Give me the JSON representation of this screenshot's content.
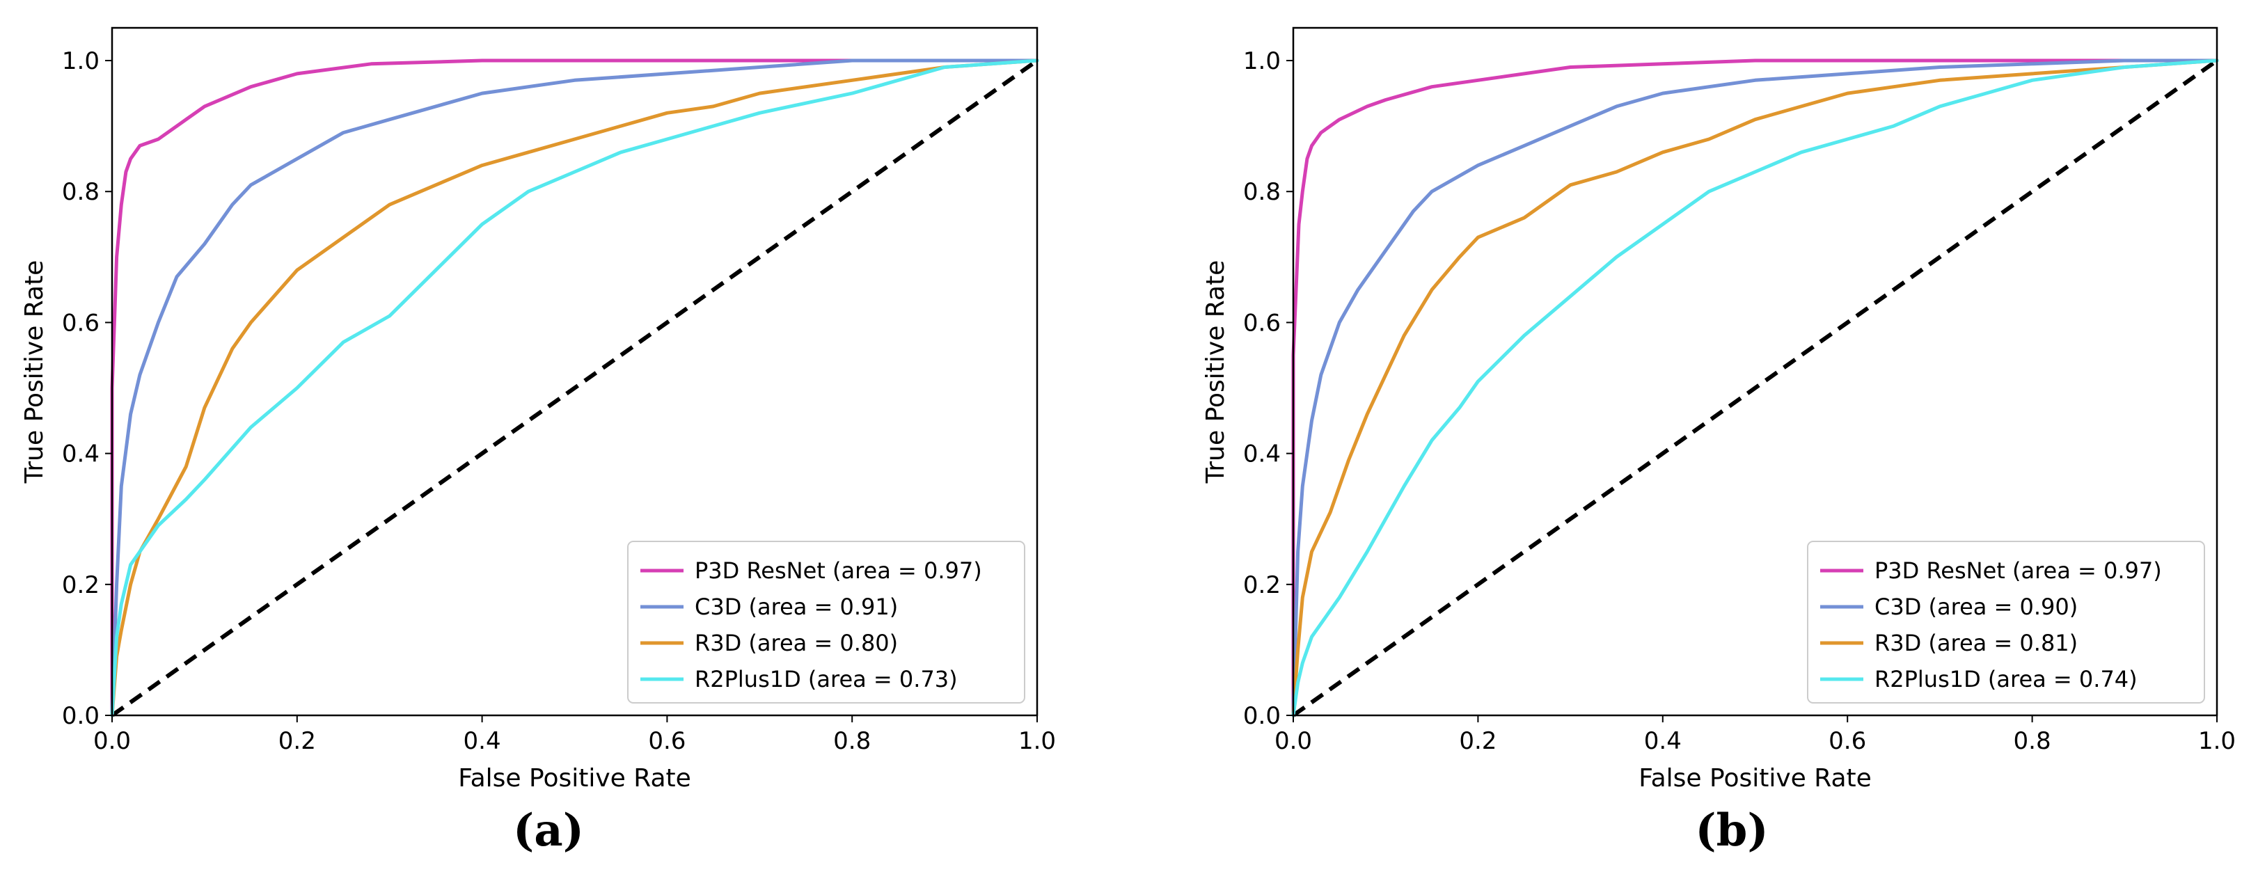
{
  "chart_data": [
    {
      "type": "line",
      "caption": "(a)",
      "xlabel": "False Positive Rate",
      "ylabel": "True Positive Rate",
      "xlim": [
        0.0,
        1.0
      ],
      "ylim": [
        0.0,
        1.05
      ],
      "xticks": [
        "0.0",
        "0.2",
        "0.4",
        "0.6",
        "0.8",
        "1.0"
      ],
      "yticks": [
        "0.0",
        "0.2",
        "0.4",
        "0.6",
        "0.8",
        "1.0"
      ],
      "grid": false,
      "legend_position": "lower-right",
      "diagonal": {
        "x": [
          0,
          1
        ],
        "y": [
          0,
          1
        ],
        "color": "#000000",
        "style": "dashed"
      },
      "series": [
        {
          "name": "P3D ResNet (area = 0.97)",
          "color": "#d63fb4",
          "x": [
            0,
            0,
            0.003,
            0.005,
            0.01,
            0.015,
            0.02,
            0.03,
            0.05,
            0.08,
            0.1,
            0.15,
            0.2,
            0.28,
            0.4,
            0.6,
            0.8,
            1.0
          ],
          "y": [
            0,
            0.5,
            0.62,
            0.7,
            0.78,
            0.83,
            0.85,
            0.87,
            0.88,
            0.91,
            0.93,
            0.96,
            0.98,
            0.995,
            1.0,
            1.0,
            1.0,
            1.0
          ]
        },
        {
          "name": "C3D (area = 0.91)",
          "color": "#7390d6",
          "x": [
            0,
            0.005,
            0.01,
            0.02,
            0.03,
            0.05,
            0.07,
            0.1,
            0.13,
            0.15,
            0.2,
            0.25,
            0.3,
            0.4,
            0.5,
            0.6,
            0.7,
            0.8,
            0.9,
            1.0
          ],
          "y": [
            0,
            0.2,
            0.35,
            0.46,
            0.52,
            0.6,
            0.67,
            0.72,
            0.78,
            0.81,
            0.85,
            0.89,
            0.91,
            0.95,
            0.97,
            0.98,
            0.99,
            1.0,
            1.0,
            1.0
          ]
        },
        {
          "name": "R3D (area = 0.80)",
          "color": "#e0962c",
          "x": [
            0,
            0.005,
            0.01,
            0.02,
            0.03,
            0.05,
            0.08,
            0.1,
            0.13,
            0.15,
            0.2,
            0.25,
            0.3,
            0.35,
            0.4,
            0.45,
            0.5,
            0.55,
            0.6,
            0.65,
            0.7,
            0.8,
            0.9,
            1.0
          ],
          "y": [
            0,
            0.09,
            0.13,
            0.2,
            0.25,
            0.3,
            0.38,
            0.47,
            0.56,
            0.6,
            0.68,
            0.73,
            0.78,
            0.81,
            0.84,
            0.86,
            0.88,
            0.9,
            0.92,
            0.93,
            0.95,
            0.97,
            0.99,
            1.0
          ]
        },
        {
          "name": "R2Plus1D (area = 0.73)",
          "color": "#55e8ee",
          "x": [
            0,
            0.005,
            0.01,
            0.02,
            0.05,
            0.08,
            0.1,
            0.15,
            0.2,
            0.25,
            0.3,
            0.35,
            0.4,
            0.45,
            0.5,
            0.55,
            0.6,
            0.65,
            0.7,
            0.8,
            0.9,
            1.0
          ],
          "y": [
            0,
            0.12,
            0.17,
            0.23,
            0.29,
            0.33,
            0.36,
            0.44,
            0.5,
            0.57,
            0.61,
            0.68,
            0.75,
            0.8,
            0.83,
            0.86,
            0.88,
            0.9,
            0.92,
            0.95,
            0.99,
            1.0
          ]
        }
      ]
    },
    {
      "type": "line",
      "caption": "(b)",
      "xlabel": "False Positive Rate",
      "ylabel": "True Positive Rate",
      "xlim": [
        0.0,
        1.0
      ],
      "ylim": [
        0.0,
        1.05
      ],
      "xticks": [
        "0.0",
        "0.2",
        "0.4",
        "0.6",
        "0.8",
        "1.0"
      ],
      "yticks": [
        "0.0",
        "0.2",
        "0.4",
        "0.6",
        "0.8",
        "1.0"
      ],
      "grid": false,
      "legend_position": "lower-right",
      "diagonal": {
        "x": [
          0,
          1
        ],
        "y": [
          0,
          1
        ],
        "color": "#000000",
        "style": "dashed"
      },
      "series": [
        {
          "name": "P3D ResNet (area = 0.97)",
          "color": "#d63fb4",
          "x": [
            0,
            0,
            0.003,
            0.006,
            0.01,
            0.015,
            0.02,
            0.03,
            0.05,
            0.08,
            0.1,
            0.15,
            0.2,
            0.3,
            0.4,
            0.5,
            0.7,
            1.0
          ],
          "y": [
            0,
            0.55,
            0.65,
            0.75,
            0.8,
            0.85,
            0.87,
            0.89,
            0.91,
            0.93,
            0.94,
            0.96,
            0.97,
            0.99,
            0.995,
            1.0,
            1.0,
            1.0
          ]
        },
        {
          "name": "C3D (area = 0.90)",
          "color": "#7390d6",
          "x": [
            0,
            0.005,
            0.01,
            0.02,
            0.03,
            0.05,
            0.07,
            0.1,
            0.13,
            0.15,
            0.2,
            0.25,
            0.3,
            0.35,
            0.4,
            0.5,
            0.6,
            0.7,
            0.8,
            0.9,
            1.0
          ],
          "y": [
            0,
            0.25,
            0.35,
            0.45,
            0.52,
            0.6,
            0.65,
            0.71,
            0.77,
            0.8,
            0.84,
            0.87,
            0.9,
            0.93,
            0.95,
            0.97,
            0.98,
            0.99,
            0.995,
            1.0,
            1.0
          ]
        },
        {
          "name": "R3D (area = 0.81)",
          "color": "#e0962c",
          "x": [
            0,
            0.005,
            0.01,
            0.02,
            0.04,
            0.06,
            0.08,
            0.1,
            0.12,
            0.15,
            0.18,
            0.2,
            0.25,
            0.3,
            0.35,
            0.4,
            0.45,
            0.5,
            0.55,
            0.6,
            0.65,
            0.7,
            0.8,
            0.9,
            1.0
          ],
          "y": [
            0,
            0.1,
            0.18,
            0.25,
            0.31,
            0.39,
            0.46,
            0.52,
            0.58,
            0.65,
            0.7,
            0.73,
            0.76,
            0.81,
            0.83,
            0.86,
            0.88,
            0.91,
            0.93,
            0.95,
            0.96,
            0.97,
            0.98,
            0.99,
            1.0
          ]
        },
        {
          "name": "R2Plus1D (area = 0.74)",
          "color": "#55e8ee",
          "x": [
            0,
            0.005,
            0.01,
            0.02,
            0.05,
            0.08,
            0.1,
            0.12,
            0.15,
            0.18,
            0.2,
            0.25,
            0.3,
            0.35,
            0.4,
            0.45,
            0.5,
            0.55,
            0.6,
            0.65,
            0.7,
            0.75,
            0.8,
            0.9,
            1.0
          ],
          "y": [
            0,
            0.05,
            0.08,
            0.12,
            0.18,
            0.25,
            0.3,
            0.35,
            0.42,
            0.47,
            0.51,
            0.58,
            0.64,
            0.7,
            0.75,
            0.8,
            0.83,
            0.86,
            0.88,
            0.9,
            0.93,
            0.95,
            0.97,
            0.99,
            1.0
          ]
        }
      ]
    }
  ]
}
